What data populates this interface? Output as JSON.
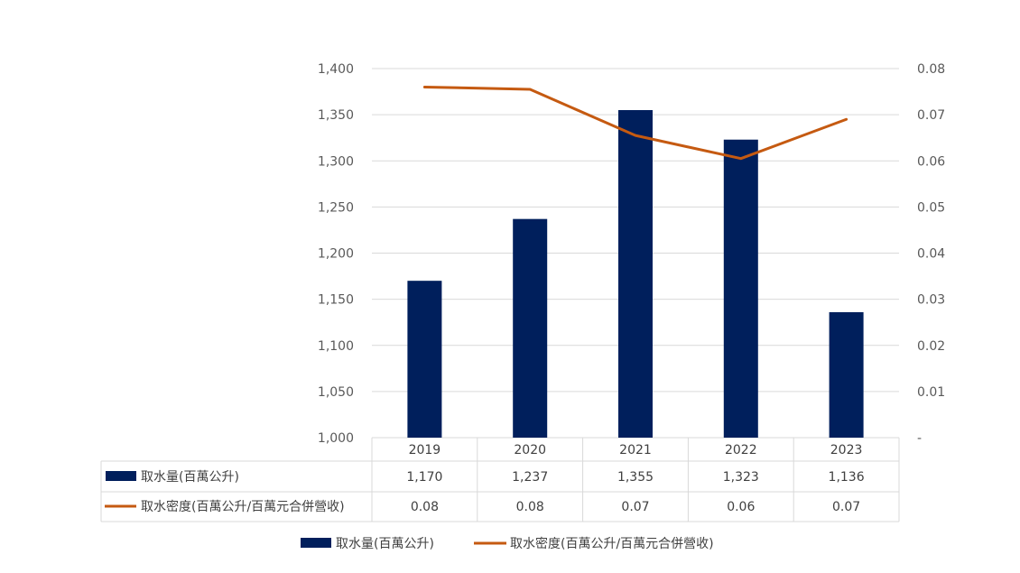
{
  "chart_data": {
    "type": "bar",
    "categories": [
      "2019",
      "2020",
      "2021",
      "2022",
      "2023"
    ],
    "series": [
      {
        "name": "取水量(百萬公升)",
        "type": "bar",
        "axis": "left",
        "values": [
          1170,
          1237,
          1355,
          1323,
          1136
        ],
        "labels": [
          "1,170",
          "1,237",
          "1,355",
          "1,323",
          "1,136"
        ],
        "color": "#001f5c"
      },
      {
        "name": "取水密度(百萬公升/百萬元合併營收)",
        "type": "line",
        "axis": "right",
        "values": [
          0.076,
          0.0755,
          0.0655,
          0.0605,
          0.069
        ],
        "labels": [
          "0.08",
          "0.08",
          "0.07",
          "0.06",
          "0.07"
        ],
        "color": "#c55a11"
      }
    ],
    "y_left": {
      "ylim": [
        1000,
        1400
      ],
      "ticks": [
        "1,000",
        "1,050",
        "1,100",
        "1,150",
        "1,200",
        "1,250",
        "1,300",
        "1,350",
        "1,400"
      ]
    },
    "y_right": {
      "ylim": [
        0,
        0.08
      ],
      "ticks": [
        "-",
        "0.01",
        "0.02",
        "0.03",
        "0.04",
        "0.05",
        "0.06",
        "0.07",
        "0.08"
      ]
    },
    "grid": true,
    "legend": "bottom",
    "data_table": true
  }
}
